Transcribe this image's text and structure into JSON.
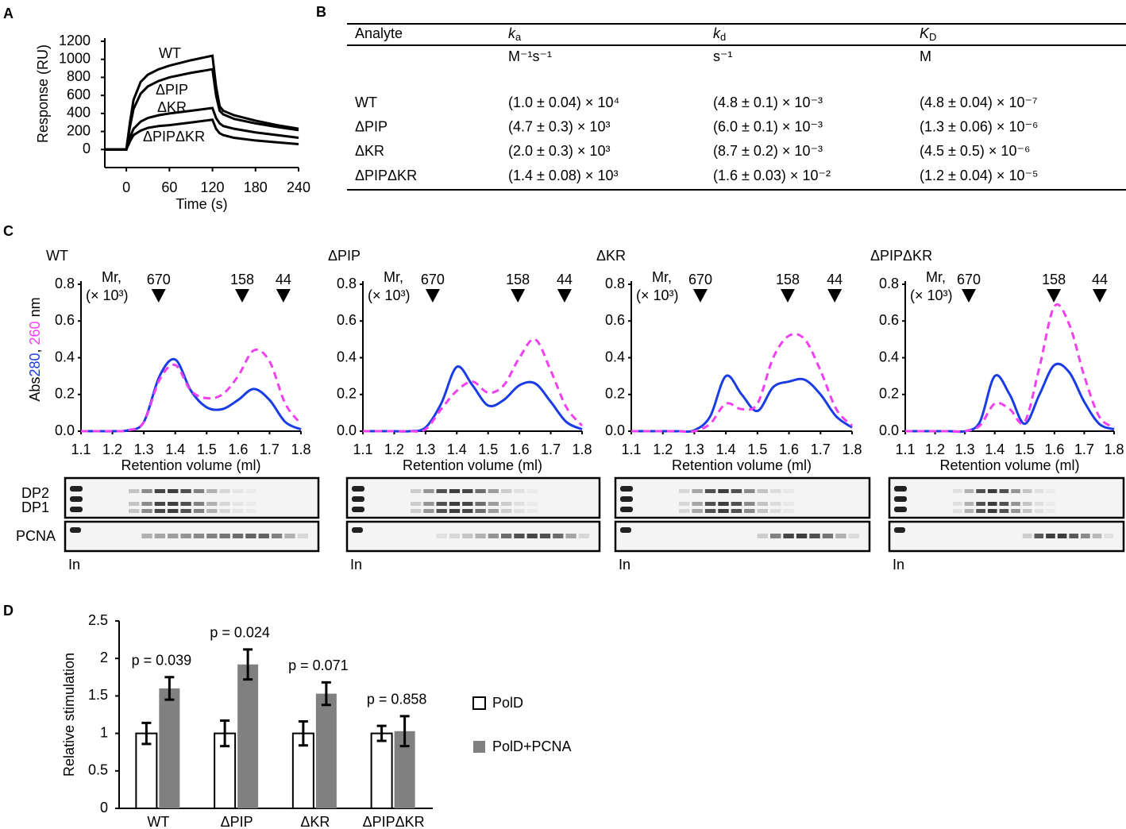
{
  "panel_labels": [
    "A",
    "B",
    "C",
    "D"
  ],
  "table": {
    "header": [
      "Analyte",
      {
        "main": "k",
        "sub": "a"
      },
      {
        "main": "k",
        "sub": "d"
      },
      {
        "main": "K",
        "sub": "D"
      }
    ],
    "units": [
      "M⁻¹s⁻¹",
      "s⁻¹",
      "M"
    ],
    "rows": [
      [
        "WT",
        "(1.0 ± 0.04) × 10⁴",
        "(4.8 ± 0.1) × 10⁻³",
        "(4.8 ± 0.04) × 10⁻⁷"
      ],
      [
        "ΔPIP",
        "(4.7 ± 0.3) × 10³",
        "(6.0 ± 0.1) × 10⁻³",
        "(1.3 ± 0.06) × 10⁻⁶"
      ],
      [
        "ΔKR",
        "(2.0 ± 0.3) × 10³",
        "(8.7 ± 0.2) × 10⁻³",
        "(4.5 ± 0.5) × 10⁻⁶"
      ],
      [
        "ΔPIPΔKR",
        "(1.4 ± 0.08) × 10³",
        "(1.6 ± 0.03) × 10⁻²",
        "(1.2 ± 0.04) × 10⁻⁵"
      ]
    ]
  },
  "chart_data": [
    {
      "type": "line",
      "xlabel": "Time (s)",
      "ylabel": "Response (RU)",
      "x": [
        -30,
        0,
        5,
        10,
        20,
        30,
        45,
        60,
        90,
        120,
        125,
        130,
        135,
        150,
        180,
        210,
        240
      ],
      "xlim": [
        -30,
        240
      ],
      "xticks": [
        0,
        60,
        120,
        180,
        240
      ],
      "ylim": [
        -200,
        1200
      ],
      "yticks": [
        0,
        200,
        400,
        600,
        800,
        1000,
        1200
      ],
      "series": [
        {
          "name": "WT",
          "color": "#000000",
          "values": [
            0,
            0,
            300,
            550,
            750,
            830,
            890,
            930,
            990,
            1040,
            700,
            480,
            430,
            380,
            320,
            270,
            230
          ]
        },
        {
          "name": "ΔPIP",
          "color": "#000000",
          "values": [
            0,
            0,
            250,
            450,
            620,
            700,
            760,
            800,
            850,
            890,
            600,
            430,
            390,
            340,
            290,
            250,
            215
          ]
        },
        {
          "name": "ΔKR",
          "color": "#000000",
          "values": [
            0,
            0,
            130,
            230,
            310,
            350,
            380,
            400,
            430,
            460,
            350,
            290,
            260,
            230,
            190,
            160,
            130
          ]
        },
        {
          "name": "ΔPIPΔKR",
          "color": "#000000",
          "values": [
            0,
            0,
            90,
            160,
            210,
            240,
            260,
            270,
            300,
            330,
            230,
            180,
            160,
            130,
            100,
            80,
            60
          ]
        }
      ]
    },
    {
      "type": "line",
      "title": "WT",
      "smooth": true,
      "ylabel": [
        "Abs",
        "280",
        ", ",
        "260",
        " nm"
      ],
      "xlabel": "Retention volume (ml)",
      "x": [
        1.1,
        1.15,
        1.2,
        1.25,
        1.3,
        1.35,
        1.4,
        1.45,
        1.5,
        1.55,
        1.6,
        1.65,
        1.7,
        1.75,
        1.8
      ],
      "xlim": [
        1.1,
        1.8
      ],
      "xticks": [
        1.1,
        1.2,
        1.3,
        1.4,
        1.5,
        1.6,
        1.7,
        1.8
      ],
      "ylim": [
        0,
        0.8
      ],
      "yticks": [
        {
          "value": 0,
          "label": "0.0"
        },
        0.2,
        0.4,
        0.6,
        0.8
      ],
      "series": [
        {
          "color": "#1a3ce6",
          "values": [
            0,
            0,
            0,
            0.005,
            0.05,
            0.3,
            0.39,
            0.22,
            0.13,
            0.12,
            0.17,
            0.23,
            0.17,
            0.05,
            0.01
          ]
        },
        {
          "color": "#f040f0",
          "dash": true,
          "values": [
            0,
            0,
            0,
            0.005,
            0.05,
            0.28,
            0.36,
            0.22,
            0.18,
            0.2,
            0.3,
            0.44,
            0.38,
            0.15,
            0.04
          ]
        }
      ],
      "marker_caption": [
        "Mr,",
        "(× 10³)"
      ],
      "markers": [
        {
          "x": 1.347,
          "label": "670"
        },
        {
          "x": 1.613,
          "label": "158"
        },
        {
          "x": 1.744,
          "label": "44"
        }
      ],
      "gel_rows": [
        "DP2",
        "DP1",
        "PCNA"
      ],
      "gel_input_label": "In"
    },
    {
      "type": "line",
      "title": "ΔPIP",
      "smooth": true,
      "xlabel": "Retention volume (ml)",
      "x": [
        1.1,
        1.15,
        1.2,
        1.25,
        1.3,
        1.35,
        1.4,
        1.45,
        1.5,
        1.55,
        1.6,
        1.65,
        1.7,
        1.75,
        1.8
      ],
      "xlim": [
        1.1,
        1.8
      ],
      "xticks": [
        1.1,
        1.2,
        1.3,
        1.4,
        1.5,
        1.6,
        1.7,
        1.8
      ],
      "ylim": [
        0,
        0.8
      ],
      "yticks": [
        {
          "value": 0,
          "label": "0.0"
        },
        0.2,
        0.4,
        0.6,
        0.8
      ],
      "series": [
        {
          "color": "#1a3ce6",
          "values": [
            0,
            0,
            0,
            0,
            0.02,
            0.15,
            0.35,
            0.25,
            0.14,
            0.17,
            0.25,
            0.26,
            0.16,
            0.05,
            0.01
          ]
        },
        {
          "color": "#f040f0",
          "dash": true,
          "values": [
            0,
            0,
            0,
            0,
            0.01,
            0.12,
            0.22,
            0.27,
            0.21,
            0.25,
            0.4,
            0.5,
            0.33,
            0.13,
            0.03
          ]
        }
      ],
      "marker_caption": [
        "Mr,",
        "(× 10³)"
      ],
      "markers": [
        {
          "x": 1.323,
          "label": "670"
        },
        {
          "x": 1.595,
          "label": "158"
        },
        {
          "x": 1.744,
          "label": "44"
        }
      ],
      "gel_input_label": "In"
    },
    {
      "type": "line",
      "title": "ΔKR",
      "smooth": true,
      "xlabel": "Retention volume (ml)",
      "x": [
        1.1,
        1.15,
        1.2,
        1.25,
        1.3,
        1.35,
        1.4,
        1.45,
        1.5,
        1.55,
        1.6,
        1.65,
        1.7,
        1.75,
        1.8
      ],
      "xlim": [
        1.1,
        1.8
      ],
      "xticks": [
        1.1,
        1.2,
        1.3,
        1.4,
        1.5,
        1.6,
        1.7,
        1.8
      ],
      "ylim": [
        0,
        0.8
      ],
      "yticks": [
        {
          "value": 0,
          "label": "0.0"
        },
        0.2,
        0.4,
        0.6,
        0.8
      ],
      "series": [
        {
          "color": "#1a3ce6",
          "values": [
            0,
            0,
            0,
            0,
            0.005,
            0.08,
            0.3,
            0.2,
            0.11,
            0.24,
            0.27,
            0.28,
            0.2,
            0.08,
            0.02
          ]
        },
        {
          "color": "#f040f0",
          "dash": true,
          "values": [
            0,
            0,
            0,
            0,
            0,
            0.04,
            0.15,
            0.12,
            0.15,
            0.4,
            0.52,
            0.5,
            0.33,
            0.12,
            0.03
          ]
        }
      ],
      "marker_caption": [
        "Mr,",
        "(× 10³)"
      ],
      "markers": [
        {
          "x": 1.319,
          "label": "670"
        },
        {
          "x": 1.596,
          "label": "158"
        },
        {
          "x": 1.745,
          "label": "44"
        }
      ],
      "gel_input_label": "In"
    },
    {
      "type": "line",
      "title": "ΔPIPΔKR",
      "smooth": true,
      "xlabel": "Retention volume (ml)",
      "x": [
        1.1,
        1.15,
        1.2,
        1.25,
        1.3,
        1.35,
        1.4,
        1.45,
        1.5,
        1.55,
        1.6,
        1.65,
        1.7,
        1.75,
        1.8
      ],
      "xlim": [
        1.1,
        1.8
      ],
      "xticks": [
        1.1,
        1.2,
        1.3,
        1.4,
        1.5,
        1.6,
        1.7,
        1.8
      ],
      "ylim": [
        0,
        0.8
      ],
      "yticks": [
        {
          "value": 0,
          "label": "0.0"
        },
        0.2,
        0.4,
        0.6,
        0.8
      ],
      "series": [
        {
          "color": "#1a3ce6",
          "values": [
            0,
            0,
            0,
            0,
            0,
            0.05,
            0.3,
            0.2,
            0.04,
            0.2,
            0.36,
            0.32,
            0.16,
            0.04,
            0.01
          ]
        },
        {
          "color": "#f040f0",
          "dash": true,
          "values": [
            0,
            0,
            0,
            0,
            0,
            0.03,
            0.15,
            0.12,
            0.05,
            0.35,
            0.68,
            0.58,
            0.3,
            0.08,
            0.02
          ]
        }
      ],
      "marker_caption": [
        "Mr,",
        "(× 10³)"
      ],
      "markers": [
        {
          "x": 1.313,
          "label": "670"
        },
        {
          "x": 1.598,
          "label": "158"
        },
        {
          "x": 1.752,
          "label": "44"
        }
      ],
      "gel_input_label": "In"
    },
    {
      "type": "bar",
      "ylabel": "Relative stimulation",
      "categories": [
        "WT",
        "ΔPIP",
        "ΔKR",
        "ΔPIPΔKR"
      ],
      "ylim": [
        0,
        2.5
      ],
      "yticks": [
        0,
        0.5,
        1,
        1.5,
        2,
        2.5
      ],
      "series": [
        {
          "name": "PolD",
          "color": "#ffffff",
          "values": [
            1,
            1,
            1,
            1
          ],
          "errors": [
            0.14,
            0.17,
            0.16,
            0.1
          ]
        },
        {
          "name": "PolD+PCNA",
          "color": "#808080",
          "values": [
            1.6,
            1.92,
            1.53,
            1.03
          ],
          "errors": [
            0.15,
            0.2,
            0.15,
            0.2
          ]
        }
      ],
      "annotations": [
        "p = 0.039",
        "p = 0.024",
        "p = 0.071",
        "p = 0.858"
      ],
      "legend": "right"
    }
  ]
}
